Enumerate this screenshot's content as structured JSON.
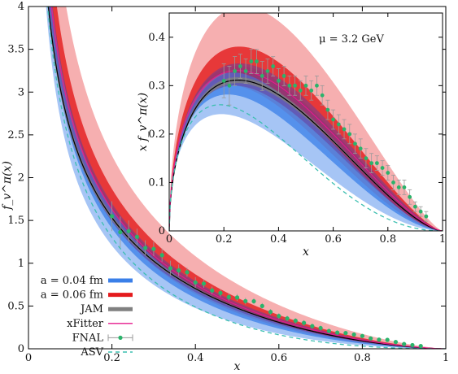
{
  "chart_data": {
    "type": "line",
    "main": {
      "xlabel": "x",
      "ylabel": "f_v^π(x)",
      "xlim": [
        0,
        1
      ],
      "ylim": [
        0,
        4
      ],
      "xticks": [
        "0",
        "0.2",
        "0.4",
        "0.6",
        "0.8",
        "1"
      ],
      "yticks": [
        "0",
        "0.5",
        "1",
        "1.5",
        "2",
        "2.5",
        "3",
        "3.5",
        "4"
      ],
      "grid": false,
      "legend_position": "bottom-left"
    },
    "inset": {
      "xlabel": "x",
      "ylabel": "x f_v^π(x)",
      "xlim": [
        0,
        1
      ],
      "ylim": [
        0,
        0.45
      ],
      "xticks": [
        "0",
        "0.2",
        "0.4",
        "0.6",
        "0.8",
        "1"
      ],
      "yticks": [
        "0",
        "0.1",
        "0.2",
        "0.3",
        "0.4"
      ],
      "annotation": "μ = 3.2 GeV"
    },
    "series": [
      {
        "name": "a = 0.04 fm",
        "color": "#3a7fe8",
        "style": "band"
      },
      {
        "name": "a = 0.06 fm",
        "color": "#e41a1c",
        "style": "band"
      },
      {
        "name": "JAM",
        "color": "#808080",
        "style": "band"
      },
      {
        "name": "xFitter",
        "color": "#e6198c",
        "style": "line"
      },
      {
        "name": "FNAL",
        "color": "#2bb36b",
        "style": "points-errorbars"
      },
      {
        "name": "ASV",
        "color": "#3cbfb0",
        "style": "dashed"
      }
    ],
    "fnal_points": {
      "x": [
        0.2,
        0.22,
        0.24,
        0.26,
        0.28,
        0.3,
        0.32,
        0.34,
        0.36,
        0.38,
        0.4,
        0.42,
        0.44,
        0.46,
        0.48,
        0.5,
        0.52,
        0.54,
        0.56,
        0.58,
        0.6,
        0.62,
        0.64,
        0.66,
        0.68,
        0.7,
        0.72,
        0.74,
        0.76,
        0.78,
        0.8,
        0.82,
        0.84,
        0.86,
        0.88,
        0.9,
        0.92,
        0.94
      ],
      "xf": [
        0.31,
        0.3,
        0.33,
        0.34,
        0.33,
        0.35,
        0.35,
        0.32,
        0.33,
        0.34,
        0.31,
        0.32,
        0.3,
        0.3,
        0.29,
        0.3,
        0.29,
        0.3,
        0.28,
        0.25,
        0.23,
        0.22,
        0.21,
        0.2,
        0.18,
        0.17,
        0.15,
        0.14,
        0.14,
        0.13,
        0.12,
        0.1,
        0.09,
        0.09,
        0.07,
        0.05,
        0.04,
        0.03
      ],
      "err": [
        0.035,
        0.04,
        0.03,
        0.025,
        0.025,
        0.025,
        0.025,
        0.03,
        0.025,
        0.02,
        0.025,
        0.02,
        0.02,
        0.02,
        0.02,
        0.02,
        0.02,
        0.02,
        0.02,
        0.02,
        0.02,
        0.02,
        0.02,
        0.02,
        0.02,
        0.02,
        0.02,
        0.02,
        0.015,
        0.015,
        0.015,
        0.015,
        0.015,
        0.015,
        0.015,
        0.01,
        0.01,
        0.01
      ]
    },
    "band_shapes": {
      "a004": {
        "n": 0.9,
        "low": 0.55,
        "b": 1.05,
        "hi": 0.75,
        "c": 1.55
      },
      "a006": {
        "n": 1.0,
        "low": 0.65,
        "b": 1.05,
        "hi": 0.75,
        "c": 1.55
      },
      "a006_light": {
        "n": 1.15,
        "low": 0.55,
        "b": 1.15,
        "hi": 0.7,
        "c": 1.5
      },
      "jam": {
        "n": 0.95,
        "low": 0.6,
        "b": 0.95,
        "hi": 0.7,
        "c": 1.4
      },
      "purple": {
        "n": 0.9,
        "low": 0.55,
        "b": 0.95,
        "hi": 0.75,
        "c": 1.4
      }
    }
  }
}
